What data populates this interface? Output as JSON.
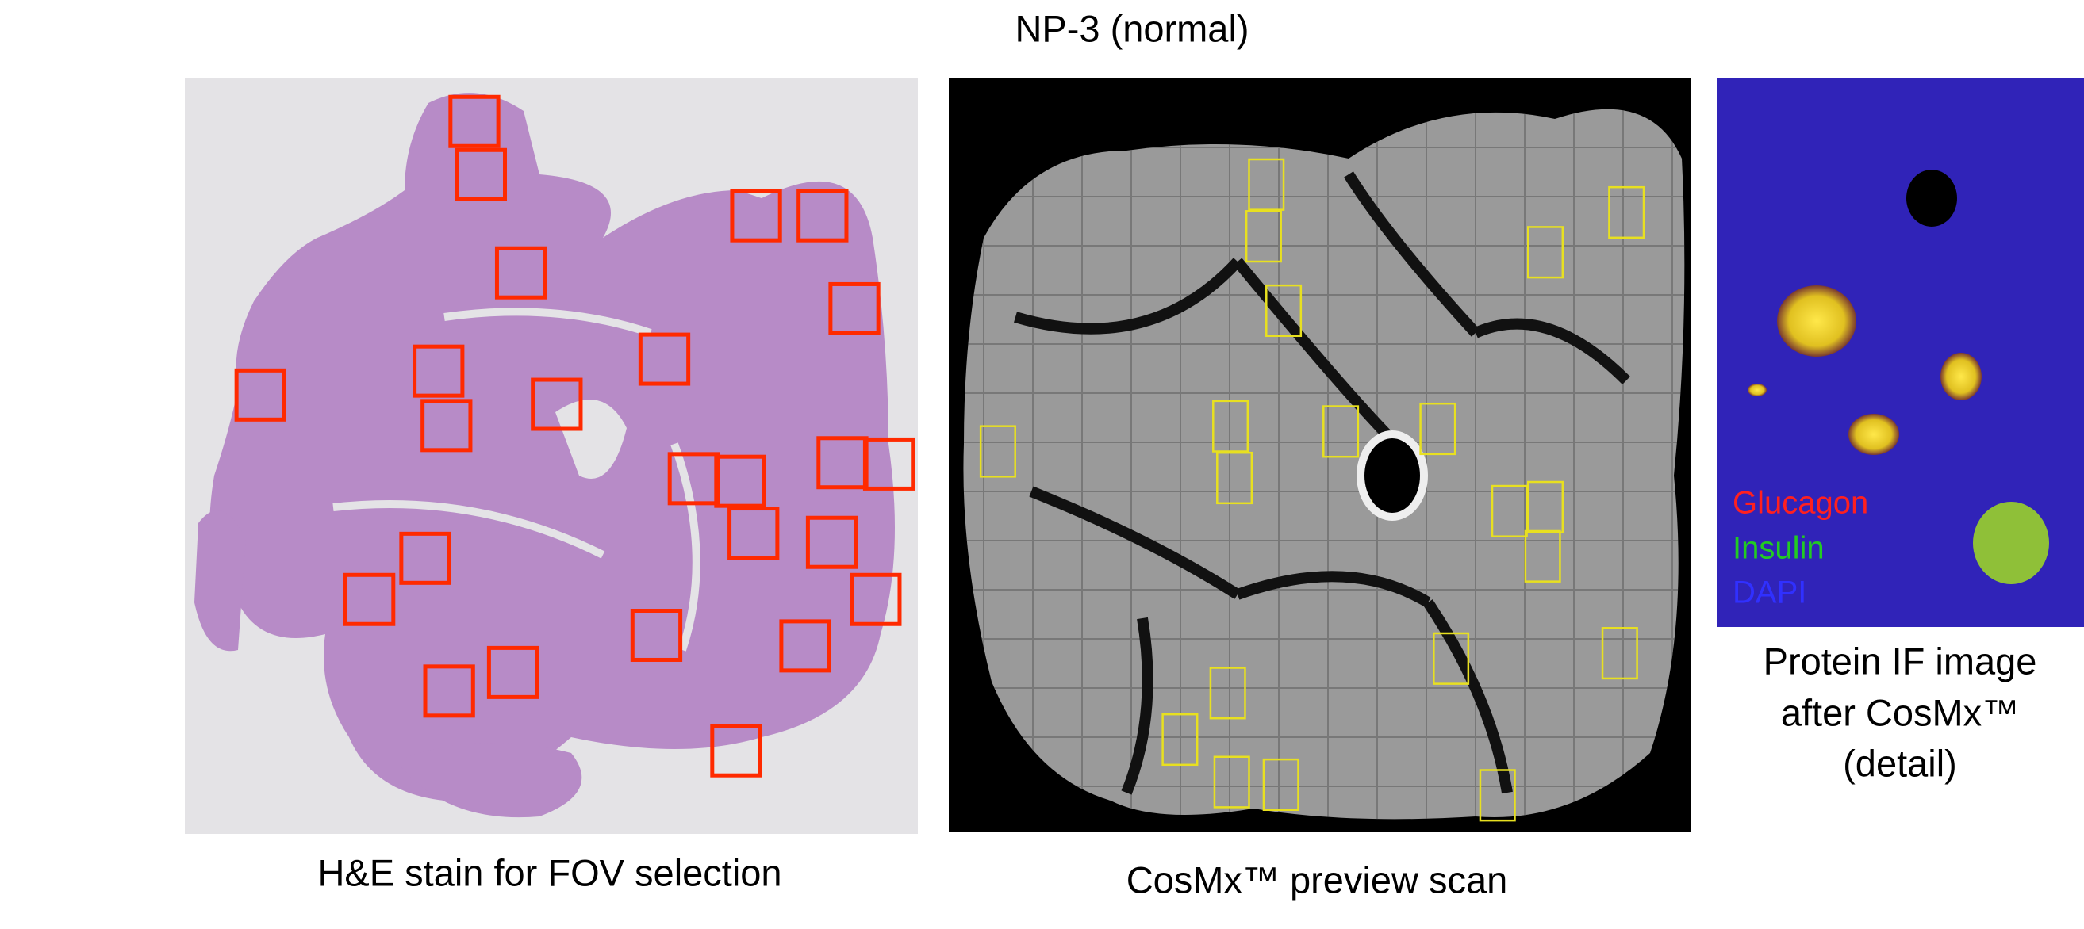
{
  "title": "NP-3 (normal)",
  "panels": [
    {
      "caption": "H&E stain for FOV selection"
    },
    {
      "caption": "CosMx™ preview scan"
    },
    {
      "caption_lines": [
        "Protein IF image",
        "after CosMx™",
        "(detail)"
      ],
      "legend": [
        "Glucagon",
        "Insulin",
        "DAPI"
      ]
    }
  ]
}
